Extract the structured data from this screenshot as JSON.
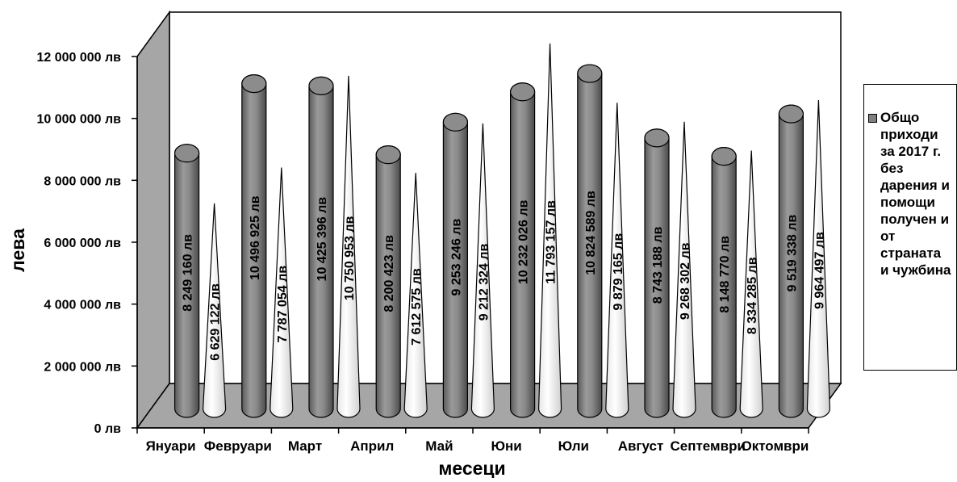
{
  "chart_data": {
    "type": "bar",
    "title": "",
    "xlabel": "месеци",
    "ylabel": "лева",
    "ylim": [
      0,
      12000000
    ],
    "yticks": [
      0,
      2000000,
      4000000,
      6000000,
      8000000,
      10000000,
      12000000
    ],
    "ytick_labels": [
      "0 лв",
      "2 000 000 лв",
      "4 000 000 лв",
      "6 000 000 лв",
      "8 000 000 лв",
      "10 000 000 лв",
      "12 000 000 лв"
    ],
    "categories": [
      "Януари",
      "Февруари",
      "Март",
      "Април",
      "Май",
      "Юни",
      "Юли",
      "Август",
      "Септември",
      "Октомври"
    ],
    "series": [
      {
        "name": "Общо приходи за 2017 г. без дарения и помощи получени от страната и чужбина",
        "color": "#808080",
        "values": [
          8249160,
          10496925,
          10425396,
          8200423,
          9253246,
          10232026,
          10824589,
          8743188,
          8148770,
          9519338
        ],
        "labels": [
          "8 249 160 лв",
          "10 496 925 лв",
          "10 425 396 лв",
          "8 200 423 лв",
          "9 253 246 лв",
          "10 232 026 лв",
          "10 824 589 лв",
          "8 743 188 лв",
          "8 148 770 лв",
          "9 519 338 лв"
        ]
      },
      {
        "name": "",
        "color": "#ffffff",
        "values": [
          6629122,
          7787054,
          10750953,
          7612575,
          9212324,
          11793157,
          9879165,
          9268302,
          8334285,
          9964497
        ],
        "labels": [
          "6 629 122 лв",
          "7 787 054 лв",
          "10 750 953 лв",
          "7 612 575 лв",
          "9 212 324 лв",
          "11 793 157 лв",
          "9 879 165 лв",
          "9 268 302 лв",
          "8 334 285 лв",
          "9 964 497 лв"
        ]
      }
    ],
    "legend": {
      "position": "right",
      "text": "Общо приходи за 2017 г. без дарения и помощи получен и от страната и чужбина"
    },
    "style": "3d-cylinder-and-cone",
    "grid": false
  }
}
